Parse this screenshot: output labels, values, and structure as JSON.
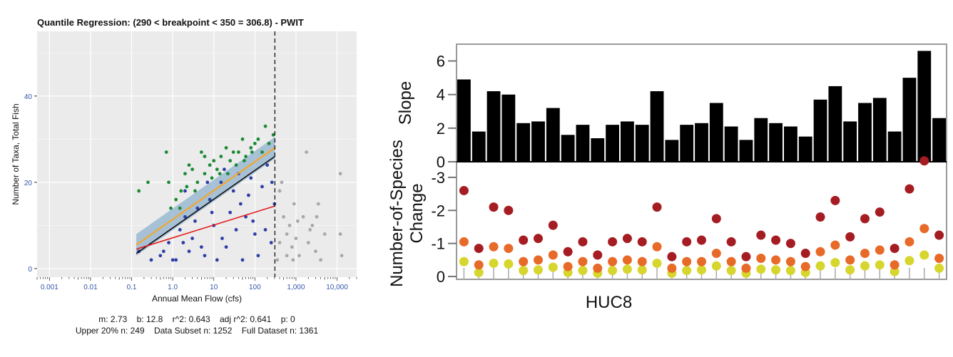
{
  "chart_data": [
    {
      "type": "scatter",
      "title": "Quantile Regression: (290 < breakpoint < 350 = 306.8) - PWIT",
      "xlabel": "Annual Mean Flow (cfs)",
      "ylabel": "Number of Taxa, Total Fish",
      "x_scale": "log",
      "xlim": [
        0.0005,
        30000
      ],
      "ylim": [
        -2,
        55
      ],
      "x_tick_labels": [
        "0.001",
        "0.01",
        "0.1",
        "1.0",
        "10",
        "100",
        "1,000",
        "10,000"
      ],
      "x_tick_values": [
        0.001,
        0.01,
        0.1,
        1,
        10,
        100,
        1000,
        10000
      ],
      "y_ticks": [
        0,
        20,
        40
      ],
      "breakpoint": 306.8,
      "grid": true,
      "legend": "none",
      "series": [
        {
          "kind": "points",
          "group": "upper20",
          "color": "#1a8a35",
          "points": [
            [
              0.15,
              18
            ],
            [
              0.25,
              20
            ],
            [
              0.7,
              27
            ],
            [
              0.8,
              20
            ],
            [
              1.2,
              16
            ],
            [
              1.6,
              18
            ],
            [
              2,
              22
            ],
            [
              2.5,
              24
            ],
            [
              3,
              23
            ],
            [
              4,
              20
            ],
            [
              5,
              27
            ],
            [
              6,
              26
            ],
            [
              8,
              24
            ],
            [
              10,
              25
            ],
            [
              12,
              23
            ],
            [
              15,
              26
            ],
            [
              20,
              28
            ],
            [
              25,
              25
            ],
            [
              30,
              27
            ],
            [
              40,
              27
            ],
            [
              50,
              30
            ],
            [
              60,
              26
            ],
            [
              80,
              28
            ],
            [
              100,
              29
            ],
            [
              120,
              30
            ],
            [
              150,
              27
            ],
            [
              180,
              33
            ],
            [
              220,
              29
            ],
            [
              280,
              31
            ],
            [
              0.9,
              14
            ],
            [
              1.5,
              14
            ],
            [
              2.2,
              19
            ],
            [
              3.5,
              18
            ],
            [
              6,
              22
            ],
            [
              9,
              21
            ],
            [
              14,
              22
            ],
            [
              22,
              22
            ],
            [
              35,
              24
            ],
            [
              55,
              25
            ],
            [
              85,
              27
            ]
          ]
        },
        {
          "kind": "points",
          "group": "data-subset",
          "color": "#2d3fa6",
          "points": [
            [
              0.15,
              4
            ],
            [
              0.3,
              2
            ],
            [
              0.5,
              3
            ],
            [
              0.8,
              6
            ],
            [
              1,
              2
            ],
            [
              1.5,
              9
            ],
            [
              2,
              12
            ],
            [
              3,
              7
            ],
            [
              4,
              14
            ],
            [
              6,
              3
            ],
            [
              8,
              16
            ],
            [
              10,
              10
            ],
            [
              15,
              20
            ],
            [
              20,
              5
            ],
            [
              30,
              18
            ],
            [
              40,
              22
            ],
            [
              60,
              12
            ],
            [
              80,
              21
            ],
            [
              100,
              8
            ],
            [
              150,
              19
            ],
            [
              200,
              24
            ],
            [
              250,
              6
            ],
            [
              300,
              15
            ],
            [
              1.2,
              2
            ],
            [
              2.5,
              4
            ],
            [
              5,
              5
            ],
            [
              12,
              2
            ],
            [
              25,
              13
            ],
            [
              50,
              2
            ],
            [
              120,
              3
            ],
            [
              2,
              18
            ],
            [
              7,
              20
            ],
            [
              18,
              23
            ],
            [
              35,
              9
            ],
            [
              70,
              17
            ],
            [
              0.6,
              4
            ],
            [
              1.8,
              6
            ],
            [
              3.5,
              11
            ],
            [
              9,
              13
            ],
            [
              16,
              7
            ],
            [
              45,
              15
            ],
            [
              90,
              11
            ],
            [
              180,
              9
            ],
            [
              260,
              20
            ]
          ]
        },
        {
          "kind": "points",
          "group": "outside-subset",
          "color": "#a8a8a8",
          "points": [
            [
              350,
              2
            ],
            [
              400,
              18
            ],
            [
              450,
              20
            ],
            [
              500,
              12
            ],
            [
              600,
              8
            ],
            [
              700,
              10
            ],
            [
              800,
              5
            ],
            [
              900,
              15
            ],
            [
              1000,
              7
            ],
            [
              1200,
              3
            ],
            [
              1500,
              12
            ],
            [
              1800,
              27
            ],
            [
              2000,
              6
            ],
            [
              2500,
              10
            ],
            [
              3000,
              4
            ],
            [
              3500,
              15
            ],
            [
              4000,
              2
            ],
            [
              5000,
              8
            ],
            [
              12000,
              22
            ],
            [
              12000,
              8
            ],
            [
              13000,
              3
            ],
            [
              400,
              6
            ],
            [
              600,
              3
            ],
            [
              1100,
              11
            ],
            [
              2200,
              9
            ],
            [
              3200,
              12
            ],
            [
              850,
              2
            ]
          ]
        }
      ],
      "lines": [
        {
          "name": "upper-quantile-fit",
          "color": "#f2a72e",
          "band_color": "#8fb2cf",
          "points": [
            [
              0.13,
              5.5
            ],
            [
              306.8,
              28
            ]
          ]
        },
        {
          "name": "ols-fit",
          "color": "#111111",
          "points": [
            [
              0.13,
              3.5
            ],
            [
              306.8,
              26
            ]
          ]
        },
        {
          "name": "median-fit",
          "color": "#e31a1c",
          "points": [
            [
              0.13,
              4.5
            ],
            [
              306.8,
              14.5
            ]
          ]
        }
      ],
      "stats": {
        "m": "2.73",
        "b": "12.8",
        "r2": "0.643",
        "adj_r2": "0.641",
        "p": "0",
        "upper_n": "249",
        "subset_n": "1252",
        "full_n": "1361"
      }
    },
    {
      "type": "bar",
      "ylabel": "Slope",
      "xlabel": "HUC8",
      "ylim": [
        0,
        7
      ],
      "y_ticks": [
        0,
        2,
        4,
        6
      ],
      "values": [
        4.9,
        1.8,
        4.2,
        4.0,
        2.3,
        2.4,
        3.2,
        1.6,
        2.2,
        1.4,
        2.2,
        2.4,
        2.2,
        4.2,
        1.3,
        2.2,
        2.3,
        3.5,
        2.1,
        1.3,
        2.6,
        2.3,
        2.1,
        1.5,
        3.7,
        4.5,
        2.4,
        3.5,
        3.8,
        1.8,
        5.0,
        6.6,
        2.6
      ],
      "color": "#000000"
    },
    {
      "type": "scatter",
      "ylabel": "Number-of-Species Change",
      "ylim": [
        0,
        -3.3
      ],
      "y_tick_labels": [
        "0",
        "-1",
        "-2",
        "-3"
      ],
      "y_ticks": [
        0,
        -1,
        -2,
        -3
      ],
      "series": [
        {
          "level": "high",
          "color": "#a51c22",
          "values": [
            -2.6,
            -0.85,
            -2.1,
            -2.0,
            -1.1,
            -1.15,
            -1.55,
            -0.75,
            -1.05,
            -0.65,
            -1.05,
            -1.15,
            -1.05,
            -2.1,
            -0.6,
            -1.05,
            -1.1,
            -1.75,
            -1.05,
            -0.6,
            -1.25,
            -1.1,
            -1.0,
            -0.7,
            -1.8,
            -2.3,
            -1.2,
            -1.75,
            -1.95,
            -0.85,
            -2.65,
            -3.5,
            -1.25
          ]
        },
        {
          "level": "mid",
          "color": "#e86a28",
          "values": [
            -1.05,
            -0.35,
            -0.9,
            -0.85,
            -0.45,
            -0.5,
            -0.65,
            -0.3,
            -0.45,
            -0.25,
            -0.45,
            -0.5,
            -0.45,
            -0.9,
            -0.25,
            -0.45,
            -0.45,
            -0.7,
            -0.45,
            -0.25,
            -0.55,
            -0.5,
            -0.45,
            -0.3,
            -0.75,
            -0.95,
            -0.5,
            -0.7,
            -0.8,
            -0.35,
            -1.05,
            -1.45,
            -0.55
          ]
        },
        {
          "level": "low",
          "color": "#d6d62e",
          "values": [
            -0.45,
            -0.12,
            -0.4,
            -0.38,
            -0.18,
            -0.2,
            -0.28,
            -0.12,
            -0.18,
            -0.1,
            -0.18,
            -0.22,
            -0.2,
            -0.4,
            -0.1,
            -0.18,
            -0.2,
            -0.32,
            -0.18,
            -0.1,
            -0.22,
            -0.2,
            -0.18,
            -0.12,
            -0.32,
            -0.42,
            -0.2,
            -0.32,
            -0.35,
            -0.15,
            -0.48,
            -0.65,
            -0.25
          ]
        }
      ]
    }
  ]
}
